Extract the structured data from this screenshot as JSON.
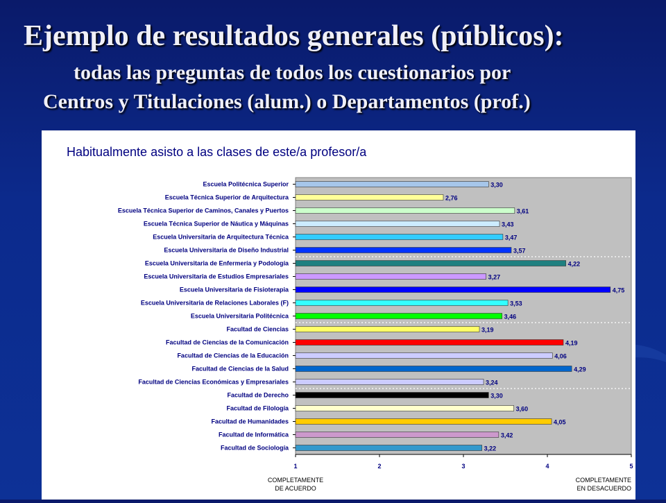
{
  "slide": {
    "title": "Ejemplo de resultados generales (públicos):",
    "subtitle_line1": "todas las preguntas de todos los cuestionarios por",
    "subtitle_line2": "Centros y Titulaciones (alum.) o Departamentos (prof.)"
  },
  "chart_data": {
    "type": "bar",
    "orientation": "horizontal",
    "title": "Habitualmente asisto a las clases de este/a profesor/a",
    "categories": [
      "Escuela Politécnica Superior",
      "Escuela Técnica Superior de Arquitectura",
      "Escuela Técnica Superior de Caminos, Canales y Puertos",
      "Escuela Técnica Superior de Náutica y Máquinas",
      "Escuela Universitaria de Arquitectura Técnica",
      "Escuela Universitaria de Diseño Industrial",
      "Escuela Universitaria de Enfermería y Podología",
      "Escuela Universitaria de Estudios Empresariales",
      "Escuela Universitaria de Fisioterapia",
      "Escuela Universitaria de Relaciones Laborales (F)",
      "Escuela Universitaria Politécnica",
      "Facultad de Ciencias",
      "Facultad de Ciencias de la Comunicación",
      "Facultad de Ciencias de la Educación",
      "Facultad de Ciencias de la Salud",
      "Facultad de Ciencias Económicas y Empresariales",
      "Facultad de Derecho",
      "Facultad de Filología",
      "Facultad de Humanidades",
      "Facultad de Informática",
      "Facultad de Sociología"
    ],
    "values": [
      3.3,
      2.76,
      3.61,
      3.43,
      3.47,
      3.57,
      4.22,
      3.27,
      4.75,
      3.53,
      3.46,
      3.19,
      4.19,
      4.06,
      4.29,
      3.24,
      3.3,
      3.6,
      4.05,
      3.42,
      3.22
    ],
    "value_labels": [
      "3,30",
      "2,76",
      "3,61",
      "3,43",
      "3,47",
      "3,57",
      "4,22",
      "3,27",
      "4,75",
      "3,53",
      "3,46",
      "3,19",
      "4,19",
      "4,06",
      "4,29",
      "3,24",
      "3,30",
      "3,60",
      "4,05",
      "3,42",
      "3,22"
    ],
    "colors": [
      "#a6c6ea",
      "#ffff99",
      "#ccffcc",
      "#ccecff",
      "#33ccff",
      "#0033ff",
      "#1f8080",
      "#cc99ff",
      "#0000ff",
      "#33ffff",
      "#00ff00",
      "#ffff66",
      "#ff0000",
      "#ccccff",
      "#0066cc",
      "#ccccff",
      "#000000",
      "#ffffcc",
      "#ffcc00",
      "#cc99cc",
      "#3399cc"
    ],
    "xlim": [
      1,
      5
    ],
    "x_ticks": [
      "1",
      "2",
      "3",
      "4",
      "5"
    ],
    "x_left_label": [
      "COMPLETAMENTE",
      "DE ACUERDO"
    ],
    "x_right_label": [
      "COMPLETAMENTE",
      "EN DESACUERDO"
    ],
    "grid": false,
    "plot_background": "#c0c0c0",
    "group_separators_after": [
      5,
      10,
      15
    ]
  }
}
